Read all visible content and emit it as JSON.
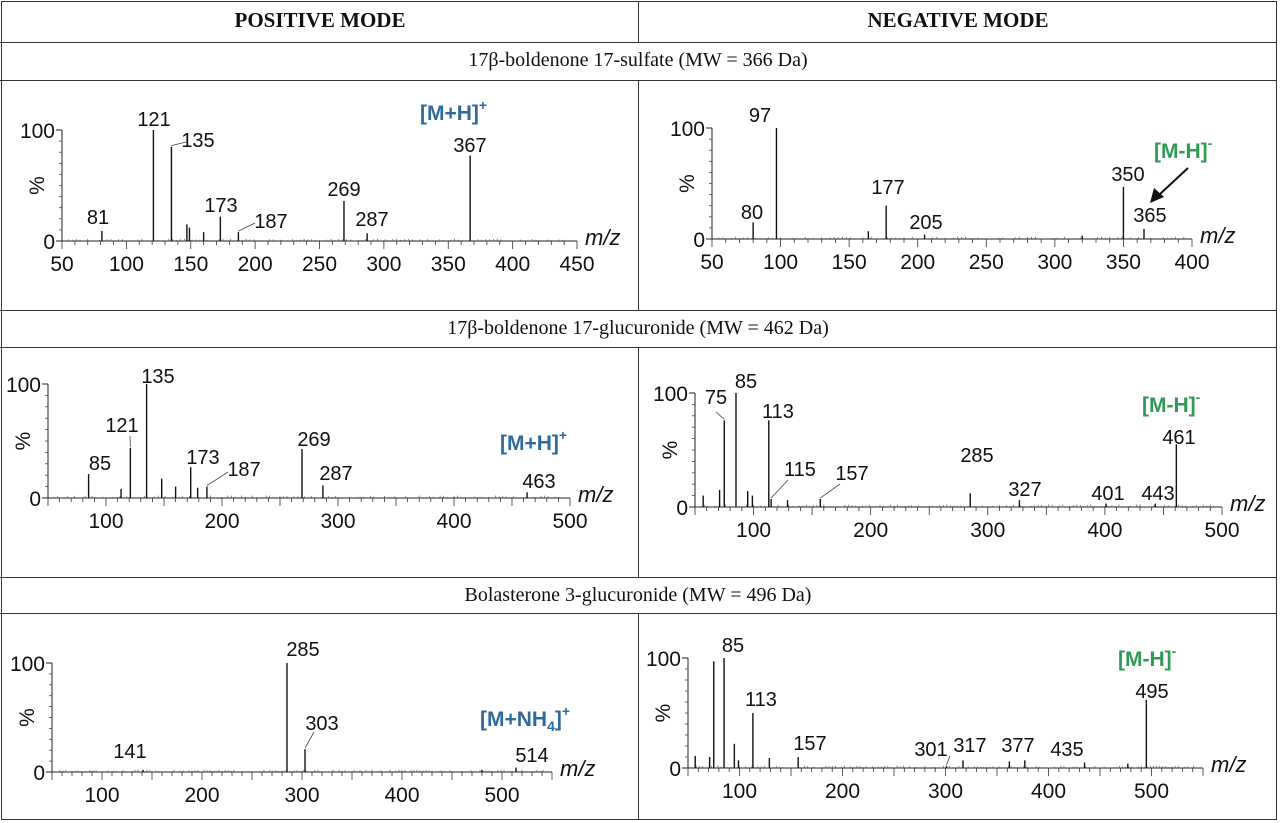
{
  "headers": {
    "positive": "POSITIVE MODE",
    "negative": "NEGATIVE MODE"
  },
  "compounds": [
    "17β-boldenone 17-sulfate (MW = 366 Da)",
    "17β-boldenone 17-glucuronide (MW = 462 Da)",
    "Bolasterone 3-glucuronide (MW = 496 Da)"
  ],
  "colors": {
    "positive_ion": "#2e6a9e",
    "negative_ion": "#2e9a55",
    "line": "#111111"
  },
  "chart_data": [
    {
      "type": "bar",
      "title": "17β-boldenone 17-sulfate — positive mode",
      "xlabel": "m/z",
      "ylabel": "%",
      "xlim": [
        50,
        450
      ],
      "ylim": [
        0,
        100
      ],
      "xticks": [
        "50",
        "100",
        "150",
        "200",
        "250",
        "300",
        "350",
        "400",
        "450"
      ],
      "yticks": [
        "0",
        "100"
      ],
      "ion_label": {
        "text": "[M+H]",
        "sup": "+"
      },
      "peaks": [
        {
          "mz": 81,
          "i": 9,
          "label": "81"
        },
        {
          "mz": 121,
          "i": 100,
          "label": "121"
        },
        {
          "mz": 135,
          "i": 85,
          "label": "135"
        },
        {
          "mz": 147,
          "i": 15
        },
        {
          "mz": 149,
          "i": 12
        },
        {
          "mz": 160,
          "i": 8
        },
        {
          "mz": 173,
          "i": 22,
          "label": "173"
        },
        {
          "mz": 187,
          "i": 8,
          "label": "187"
        },
        {
          "mz": 269,
          "i": 36,
          "label": "269"
        },
        {
          "mz": 287,
          "i": 7,
          "label": "287"
        },
        {
          "mz": 367,
          "i": 77,
          "label": "367"
        }
      ]
    },
    {
      "type": "bar",
      "title": "17β-boldenone 17-sulfate — negative mode",
      "xlabel": "m/z",
      "ylabel": "%",
      "xlim": [
        50,
        400
      ],
      "ylim": [
        0,
        100
      ],
      "xticks": [
        "50",
        "100",
        "150",
        "200",
        "250",
        "300",
        "350",
        "400"
      ],
      "yticks": [
        "0",
        "100"
      ],
      "ion_label": {
        "text": "[M-H]",
        "sup": "-"
      },
      "peaks": [
        {
          "mz": 80,
          "i": 15,
          "label": "80"
        },
        {
          "mz": 97,
          "i": 100,
          "label": "97"
        },
        {
          "mz": 164,
          "i": 7
        },
        {
          "mz": 177,
          "i": 30,
          "label": "177"
        },
        {
          "mz": 205,
          "i": 4,
          "label": "205"
        },
        {
          "mz": 320,
          "i": 3
        },
        {
          "mz": 350,
          "i": 47,
          "label": "350"
        },
        {
          "mz": 365,
          "i": 9,
          "label": "365"
        }
      ]
    },
    {
      "type": "bar",
      "title": "17β-boldenone 17-glucuronide — positive mode",
      "xlabel": "m/z",
      "ylabel": "%",
      "xlim": [
        50,
        500
      ],
      "ylim": [
        0,
        100
      ],
      "xticks": [
        "100",
        "200",
        "300",
        "400",
        "500"
      ],
      "yticks": [
        "0",
        "100"
      ],
      "ion_label": {
        "text": "[M+H]",
        "sup": "+"
      },
      "peaks": [
        {
          "mz": 85,
          "i": 21,
          "label": "85"
        },
        {
          "mz": 113,
          "i": 8
        },
        {
          "mz": 121,
          "i": 44,
          "label": "121"
        },
        {
          "mz": 135,
          "i": 100,
          "label": "135"
        },
        {
          "mz": 148,
          "i": 17
        },
        {
          "mz": 160,
          "i": 10
        },
        {
          "mz": 173,
          "i": 27,
          "label": "173"
        },
        {
          "mz": 179,
          "i": 9
        },
        {
          "mz": 187,
          "i": 10,
          "label": "187"
        },
        {
          "mz": 269,
          "i": 43,
          "label": "269"
        },
        {
          "mz": 287,
          "i": 11,
          "label": "287"
        },
        {
          "mz": 463,
          "i": 5,
          "label": "463"
        }
      ]
    },
    {
      "type": "bar",
      "title": "17β-boldenone 17-glucuronide — negative mode",
      "xlabel": "m/z",
      "ylabel": "%",
      "xlim": [
        50,
        500
      ],
      "ylim": [
        0,
        100
      ],
      "xticks": [
        "100",
        "200",
        "300",
        "400",
        "500"
      ],
      "yticks": [
        "0",
        "100"
      ],
      "ion_label": {
        "text": "[M-H]",
        "sup": "-"
      },
      "peaks": [
        {
          "mz": 57,
          "i": 10
        },
        {
          "mz": 71,
          "i": 15
        },
        {
          "mz": 75,
          "i": 76,
          "label": "75"
        },
        {
          "mz": 85,
          "i": 100,
          "label": "85"
        },
        {
          "mz": 95,
          "i": 14
        },
        {
          "mz": 99,
          "i": 10
        },
        {
          "mz": 113,
          "i": 76,
          "label": "113"
        },
        {
          "mz": 115,
          "i": 7,
          "label": "115"
        },
        {
          "mz": 129,
          "i": 6
        },
        {
          "mz": 157,
          "i": 7,
          "label": "157"
        },
        {
          "mz": 285,
          "i": 12,
          "label": "285"
        },
        {
          "mz": 327,
          "i": 6,
          "label": "327"
        },
        {
          "mz": 401,
          "i": 3,
          "label": "401"
        },
        {
          "mz": 443,
          "i": 3,
          "label": "443"
        },
        {
          "mz": 461,
          "i": 55,
          "label": "461"
        }
      ]
    },
    {
      "type": "bar",
      "title": "Bolasterone 3-glucuronide — positive mode",
      "xlabel": "m/z",
      "ylabel": "%",
      "xlim": [
        50,
        550
      ],
      "ylim": [
        0,
        100
      ],
      "xticks": [
        "100",
        "200",
        "300",
        "400",
        "500"
      ],
      "yticks": [
        "0",
        "100"
      ],
      "ion_label": {
        "text": "[M+NH",
        "sub": "4",
        "close": "]",
        "sup": "+"
      },
      "peaks": [
        {
          "mz": 141,
          "i": 2,
          "label": "141"
        },
        {
          "mz": 285,
          "i": 100,
          "label": "285"
        },
        {
          "mz": 303,
          "i": 21,
          "label": "303"
        },
        {
          "mz": 480,
          "i": 2
        },
        {
          "mz": 514,
          "i": 4,
          "label": "514"
        }
      ]
    },
    {
      "type": "bar",
      "title": "Bolasterone 3-glucuronide — negative mode",
      "xlabel": "m/z",
      "ylabel": "%",
      "xlim": [
        50,
        550
      ],
      "ylim": [
        0,
        100
      ],
      "xticks": [
        "100",
        "200",
        "300",
        "400",
        "500"
      ],
      "yticks": [
        "0",
        "100"
      ],
      "ion_label": {
        "text": "[M-H]",
        "sup": "-"
      },
      "peaks": [
        {
          "mz": 57,
          "i": 11
        },
        {
          "mz": 71,
          "i": 10
        },
        {
          "mz": 75,
          "i": 97
        },
        {
          "mz": 85,
          "i": 100,
          "label": "85"
        },
        {
          "mz": 95,
          "i": 22
        },
        {
          "mz": 99,
          "i": 7
        },
        {
          "mz": 113,
          "i": 50,
          "label": "113"
        },
        {
          "mz": 129,
          "i": 9
        },
        {
          "mz": 157,
          "i": 10,
          "label": "157"
        },
        {
          "mz": 301,
          "i": 2,
          "label": "301"
        },
        {
          "mz": 317,
          "i": 7,
          "label": "317"
        },
        {
          "mz": 362,
          "i": 6
        },
        {
          "mz": 377,
          "i": 7,
          "label": "377"
        },
        {
          "mz": 435,
          "i": 5,
          "label": "435"
        },
        {
          "mz": 477,
          "i": 4
        },
        {
          "mz": 495,
          "i": 62,
          "label": "495"
        }
      ]
    }
  ]
}
